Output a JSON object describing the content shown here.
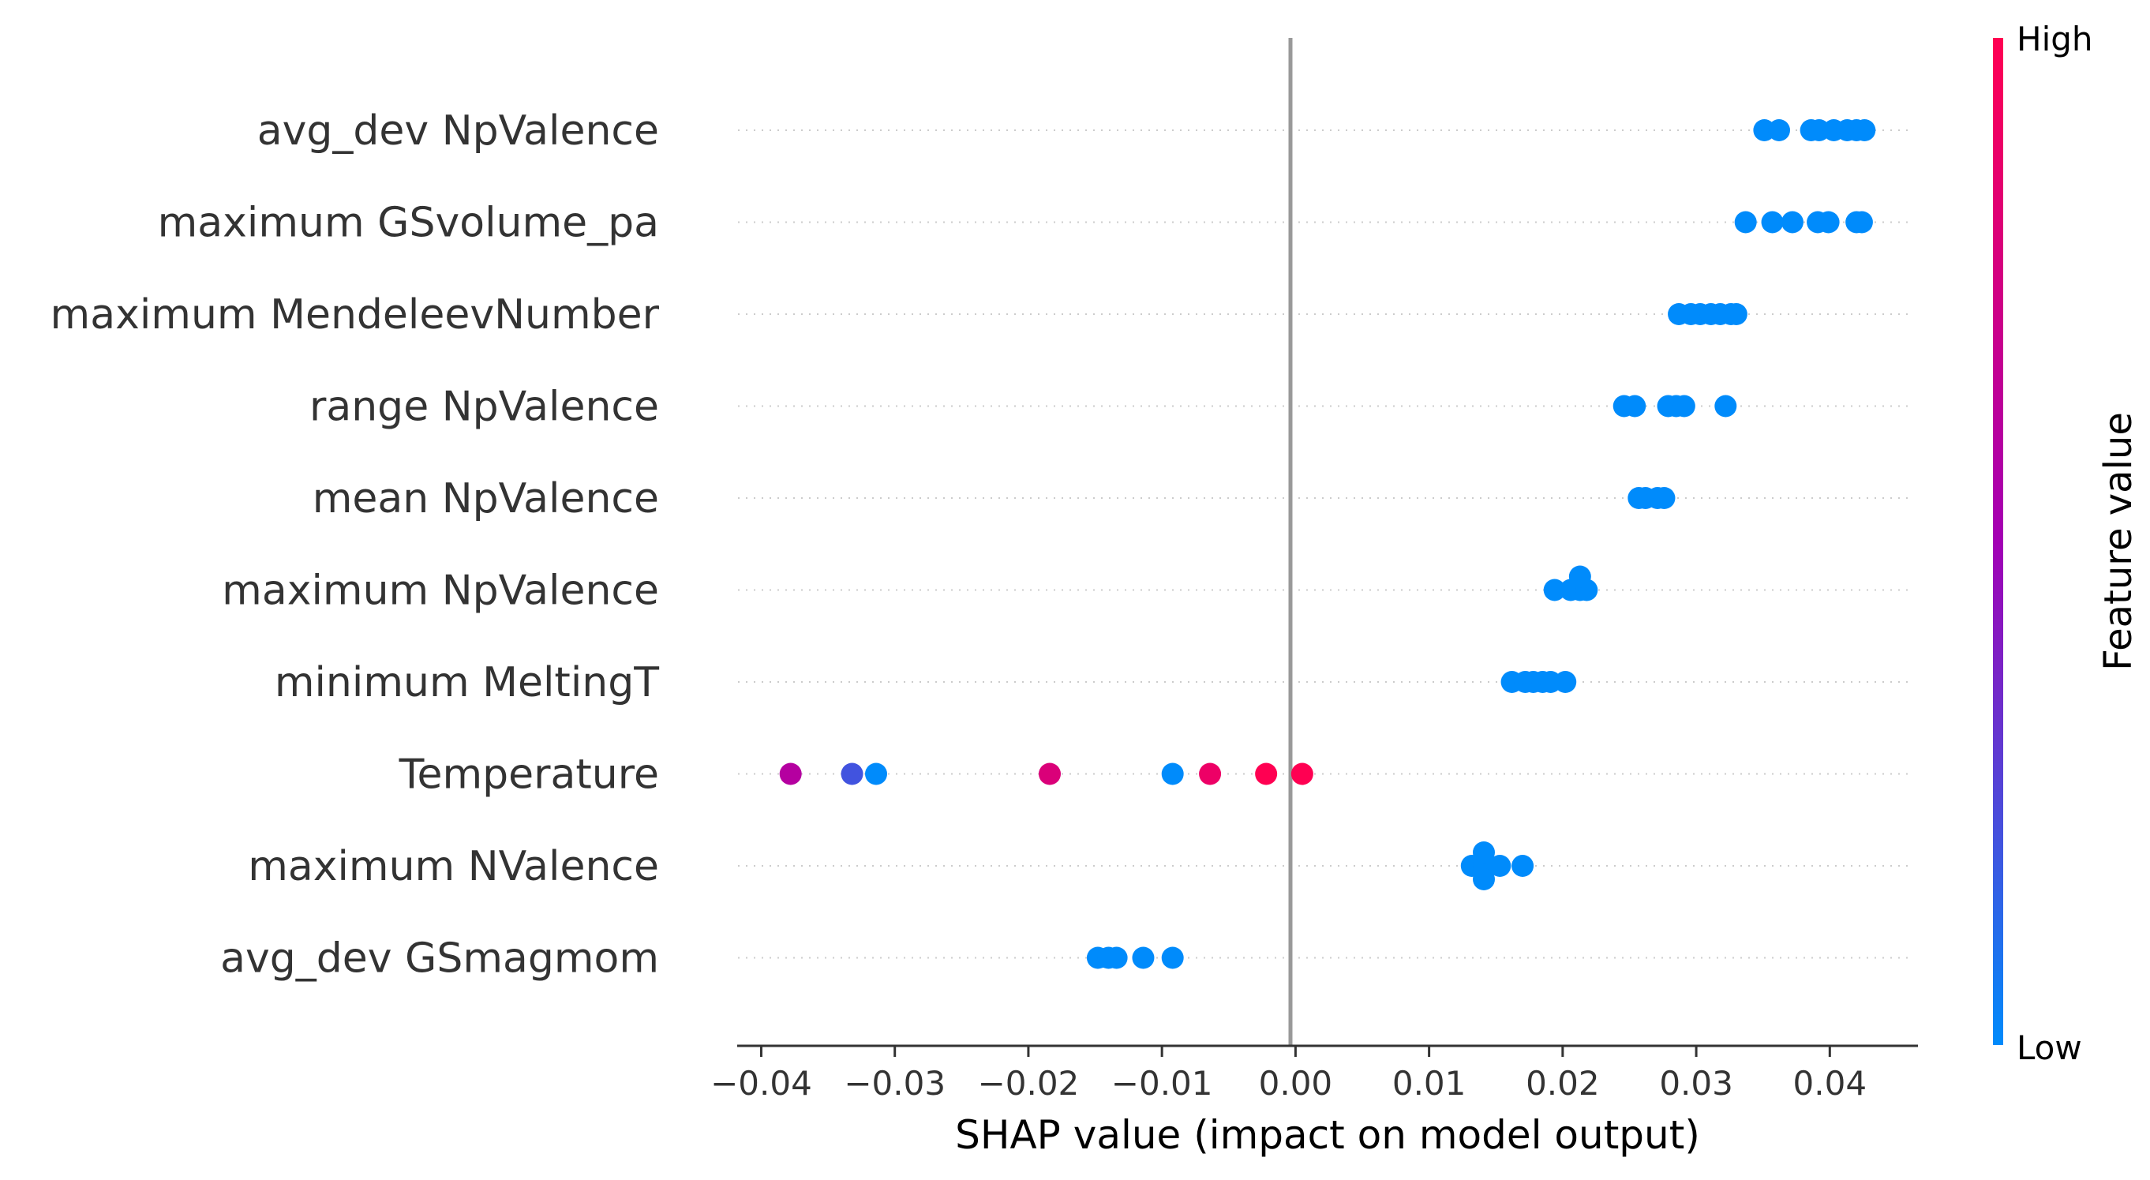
{
  "chart_data": {
    "type": "scatter",
    "title": "",
    "xlabel": "SHAP value (impact on model output)",
    "ylabel": "",
    "xlim": [
      -0.0418,
      0.0466
    ],
    "xticks": [
      -0.04,
      -0.03,
      -0.02,
      -0.01,
      0.0,
      0.01,
      0.02,
      0.03,
      0.04
    ],
    "xtick_labels": [
      "−0.04",
      "−0.03",
      "−0.02",
      "−0.01",
      "0.00",
      "0.01",
      "0.02",
      "0.03",
      "0.04"
    ],
    "colorbar": {
      "title": "Feature value",
      "high_label": "High",
      "low_label": "Low",
      "low_color": "#008bfb",
      "high_color": "#ff0052"
    },
    "features": [
      {
        "name": "avg_dev NpValence",
        "points": [
          {
            "x": 0.0351,
            "v": 0.0,
            "o": 0.0
          },
          {
            "x": 0.0362,
            "v": 0.0,
            "o": 0.0
          },
          {
            "x": 0.0386,
            "v": 0.0,
            "o": 0.0
          },
          {
            "x": 0.0392,
            "v": 0.0,
            "o": 0.0
          },
          {
            "x": 0.0403,
            "v": 0.0,
            "o": 0.0
          },
          {
            "x": 0.0413,
            "v": 0.0,
            "o": 0.0
          },
          {
            "x": 0.042,
            "v": 0.0,
            "o": 0.0
          },
          {
            "x": 0.0426,
            "v": 0.0,
            "o": 0.0
          }
        ]
      },
      {
        "name": "maximum GSvolume_pa",
        "points": [
          {
            "x": 0.0337,
            "v": 0.0,
            "o": 0.0
          },
          {
            "x": 0.0357,
            "v": 0.0,
            "o": 0.0
          },
          {
            "x": 0.0372,
            "v": 0.0,
            "o": 0.0
          },
          {
            "x": 0.0391,
            "v": 0.0,
            "o": 0.0
          },
          {
            "x": 0.0399,
            "v": 0.0,
            "o": 0.0
          },
          {
            "x": 0.042,
            "v": 0.0,
            "o": 0.0
          },
          {
            "x": 0.0424,
            "v": 0.0,
            "o": 0.0
          }
        ]
      },
      {
        "name": "maximum MendeleevNumber",
        "points": [
          {
            "x": 0.0287,
            "v": 0.0,
            "o": 0.0
          },
          {
            "x": 0.0296,
            "v": 0.0,
            "o": 0.0
          },
          {
            "x": 0.0303,
            "v": 0.0,
            "o": 0.0
          },
          {
            "x": 0.0311,
            "v": 0.0,
            "o": 0.0
          },
          {
            "x": 0.0318,
            "v": 0.0,
            "o": 0.0
          },
          {
            "x": 0.0326,
            "v": 0.0,
            "o": 0.0
          },
          {
            "x": 0.033,
            "v": 0.0,
            "o": 0.0
          }
        ]
      },
      {
        "name": "range NpValence",
        "points": [
          {
            "x": 0.0246,
            "v": 0.0,
            "o": 0.0
          },
          {
            "x": 0.0254,
            "v": 0.0,
            "o": 0.0
          },
          {
            "x": 0.0279,
            "v": 0.0,
            "o": 0.0
          },
          {
            "x": 0.0285,
            "v": 0.0,
            "o": 0.0
          },
          {
            "x": 0.0291,
            "v": 0.0,
            "o": 0.0
          },
          {
            "x": 0.0322,
            "v": 0.0,
            "o": 0.0
          }
        ]
      },
      {
        "name": "mean NpValence",
        "points": [
          {
            "x": 0.0257,
            "v": 0.0,
            "o": 0.0
          },
          {
            "x": 0.0262,
            "v": 0.0,
            "o": 0.0
          },
          {
            "x": 0.0271,
            "v": 0.0,
            "o": 0.0
          },
          {
            "x": 0.0276,
            "v": 0.0,
            "o": 0.0
          }
        ]
      },
      {
        "name": "maximum NpValence",
        "points": [
          {
            "x": 0.0194,
            "v": 0.0,
            "o": 0.0
          },
          {
            "x": 0.0206,
            "v": 0.0,
            "o": 0.0
          },
          {
            "x": 0.0213,
            "v": 0.0,
            "o": 0.0
          },
          {
            "x": 0.0218,
            "v": 0.0,
            "o": 0.0
          },
          {
            "x": 0.0213,
            "v": 0.0,
            "o": 1.0
          }
        ]
      },
      {
        "name": "minimum MeltingT",
        "points": [
          {
            "x": 0.0162,
            "v": 0.0,
            "o": 0.0
          },
          {
            "x": 0.0172,
            "v": 0.0,
            "o": 0.0
          },
          {
            "x": 0.0178,
            "v": 0.0,
            "o": 0.0
          },
          {
            "x": 0.0185,
            "v": 0.0,
            "o": 0.0
          },
          {
            "x": 0.0191,
            "v": 0.0,
            "o": 0.0
          },
          {
            "x": 0.0202,
            "v": 0.0,
            "o": 0.0
          }
        ]
      },
      {
        "name": "Temperature",
        "points": [
          {
            "x": -0.0378,
            "v": 0.6,
            "o": 0.0
          },
          {
            "x": -0.0332,
            "v": 0.2,
            "o": 0.0
          },
          {
            "x": -0.0314,
            "v": 0.0,
            "o": 0.0
          },
          {
            "x": -0.0184,
            "v": 0.8,
            "o": 0.0
          },
          {
            "x": -0.0092,
            "v": 0.0,
            "o": 0.0
          },
          {
            "x": -0.0064,
            "v": 0.9,
            "o": 0.0
          },
          {
            "x": -0.0022,
            "v": 1.0,
            "o": 0.0
          },
          {
            "x": 0.0005,
            "v": 1.0,
            "o": 0.0
          }
        ]
      },
      {
        "name": "maximum NValence",
        "points": [
          {
            "x": 0.0132,
            "v": 0.0,
            "o": 0.0
          },
          {
            "x": 0.0141,
            "v": 0.0,
            "o": 0.0
          },
          {
            "x": 0.0153,
            "v": 0.0,
            "o": 0.0
          },
          {
            "x": 0.017,
            "v": 0.0,
            "o": 0.0
          },
          {
            "x": 0.0141,
            "v": 0.0,
            "o": 1.0
          },
          {
            "x": 0.0141,
            "v": 0.0,
            "o": -1.0
          }
        ]
      },
      {
        "name": "avg_dev GSmagmom",
        "points": [
          {
            "x": -0.0148,
            "v": 0.0,
            "o": 0.0
          },
          {
            "x": -0.014,
            "v": 0.0,
            "o": 0.0
          },
          {
            "x": -0.0134,
            "v": 0.0,
            "o": 0.0
          },
          {
            "x": -0.0114,
            "v": 0.0,
            "o": 0.0
          },
          {
            "x": -0.0092,
            "v": 0.0,
            "o": 0.0
          }
        ]
      }
    ]
  }
}
